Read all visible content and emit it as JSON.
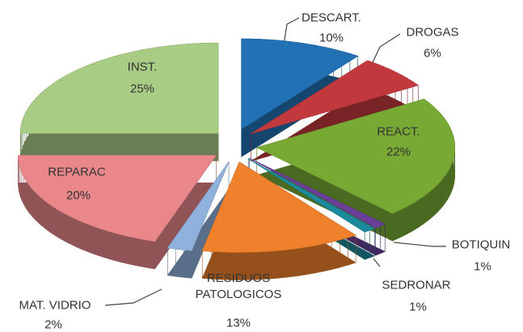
{
  "chart_data": {
    "type": "pie",
    "categories": [
      "DESCART.",
      "DROGAS",
      "REACT.",
      "BOTIQUIN",
      "SEDRONAR",
      "RESIDUOS PATOLOGICOS",
      "MAT. VIDRIO",
      "REPARAC",
      "INST."
    ],
    "values": [
      10,
      6,
      22,
      1,
      1,
      13,
      2,
      20,
      25
    ],
    "value_labels": [
      "10%",
      "6%",
      "22%",
      "1%",
      "1%",
      "13%",
      "2%",
      "20%",
      "25%"
    ],
    "colors": [
      "#2271b5",
      "#c2393d",
      "#78a935",
      "#6b3f98",
      "#1b8a9b",
      "#f0812c",
      "#90b1dc",
      "#e9878b",
      "#a9cc84"
    ]
  }
}
